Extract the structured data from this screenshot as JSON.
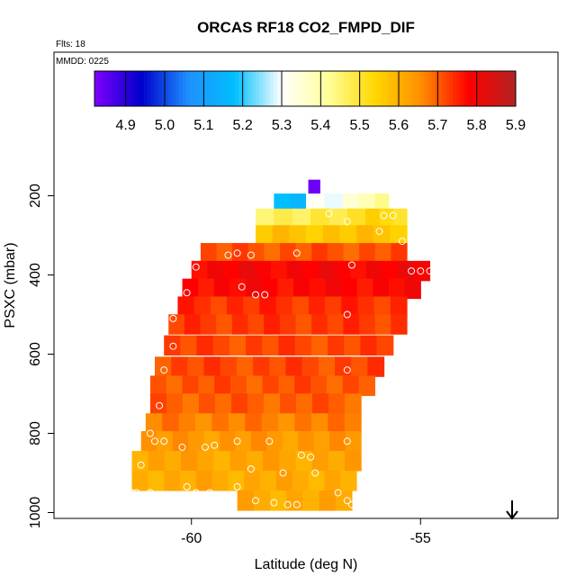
{
  "chart_data": {
    "type": "heatmap",
    "title": "ORCAS RF18 CO2_FMPD_DIF",
    "flights_label": "Flts: 18",
    "date_label": "MMDD: 0225",
    "xlabel": "Latitude (deg N)",
    "ylabel": "PSXC (mbar)",
    "xlim": [
      -63,
      -52
    ],
    "ylim": [
      1010,
      100
    ],
    "xticks": [
      -60,
      -55
    ],
    "yticks": [
      200,
      400,
      600,
      800,
      1000
    ],
    "colorbar": {
      "min": 4.82,
      "max": 5.9,
      "ticks": [
        4.9,
        5.0,
        5.1,
        5.2,
        5.3,
        5.4,
        5.5,
        5.6,
        5.7,
        5.8,
        5.9
      ],
      "colors": [
        "#8000ff",
        "#0000cc",
        "#1e90ff",
        "#00bfff",
        "#ffffff",
        "#ffff99",
        "#ffd700",
        "#ff8c00",
        "#ff0000",
        "#b22222"
      ]
    },
    "cells": [
      {
        "p": 185,
        "lat_min": -57.45,
        "lat_max": -57.2,
        "v": 4.86
      },
      {
        "p": 220,
        "lat_min": -58.2,
        "lat_max": -57.5,
        "v": 5.18
      },
      {
        "p": 220,
        "lat_min": -57.5,
        "lat_max": -56.7,
        "v": 5.29
      },
      {
        "p": 220,
        "lat_min": -56.7,
        "lat_max": -56.0,
        "v": 5.36
      },
      {
        "p": 220,
        "lat_min": -56.0,
        "lat_max": -55.7,
        "v": 5.42
      },
      {
        "p": 258,
        "lat_min": -58.6,
        "lat_max": -57.4,
        "v": 5.47
      },
      {
        "p": 258,
        "lat_min": -57.4,
        "lat_max": -56.2,
        "v": 5.5
      },
      {
        "p": 258,
        "lat_min": -56.2,
        "lat_max": -55.3,
        "v": 5.53
      },
      {
        "p": 300,
        "lat_min": -58.6,
        "lat_max": -55.3,
        "v": 5.57
      },
      {
        "p": 345,
        "lat_min": -59.8,
        "lat_max": -55.3,
        "v": 5.71
      },
      {
        "p": 390,
        "lat_min": -60.0,
        "lat_max": -54.8,
        "v": 5.79
      },
      {
        "p": 435,
        "lat_min": -60.2,
        "lat_max": -55.0,
        "v": 5.78
      },
      {
        "p": 480,
        "lat_min": -60.3,
        "lat_max": -55.3,
        "v": 5.74
      },
      {
        "p": 525,
        "lat_min": -60.5,
        "lat_max": -55.3,
        "v": 5.73
      },
      {
        "p": 578,
        "lat_min": -60.6,
        "lat_max": -55.6,
        "v": 5.72
      },
      {
        "p": 632,
        "lat_min": -60.8,
        "lat_max": -55.8,
        "v": 5.72
      },
      {
        "p": 680,
        "lat_min": -60.9,
        "lat_max": -56.0,
        "v": 5.71
      },
      {
        "p": 725,
        "lat_min": -60.9,
        "lat_max": -56.3,
        "v": 5.7
      },
      {
        "p": 775,
        "lat_min": -61.0,
        "lat_max": -56.3,
        "v": 5.67
      },
      {
        "p": 820,
        "lat_min": -61.1,
        "lat_max": -56.3,
        "v": 5.64
      },
      {
        "p": 870,
        "lat_min": -61.3,
        "lat_max": -56.3,
        "v": 5.62
      },
      {
        "p": 920,
        "lat_min": -61.3,
        "lat_max": -56.4,
        "v": 5.61
      },
      {
        "p": 970,
        "lat_min": -59.0,
        "lat_max": -56.5,
        "v": 5.61
      }
    ],
    "points": [
      {
        "lat": -57.4,
        "p": 205
      },
      {
        "lat": -57.0,
        "p": 245
      },
      {
        "lat": -56.6,
        "p": 265
      },
      {
        "lat": -55.9,
        "p": 290
      },
      {
        "lat": -55.8,
        "p": 250
      },
      {
        "lat": -55.6,
        "p": 250
      },
      {
        "lat": -55.4,
        "p": 315
      },
      {
        "lat": -56.5,
        "p": 375
      },
      {
        "lat": -55.2,
        "p": 390
      },
      {
        "lat": -55.0,
        "p": 390
      },
      {
        "lat": -54.8,
        "p": 390
      },
      {
        "lat": -56.6,
        "p": 500
      },
      {
        "lat": -57.7,
        "p": 345
      },
      {
        "lat": -58.7,
        "p": 350
      },
      {
        "lat": -59.0,
        "p": 345
      },
      {
        "lat": -59.2,
        "p": 350
      },
      {
        "lat": -59.9,
        "p": 380
      },
      {
        "lat": -60.1,
        "p": 445
      },
      {
        "lat": -58.9,
        "p": 430
      },
      {
        "lat": -58.6,
        "p": 450
      },
      {
        "lat": -58.4,
        "p": 450
      },
      {
        "lat": -60.4,
        "p": 510
      },
      {
        "lat": -60.4,
        "p": 580
      },
      {
        "lat": -60.6,
        "p": 640
      },
      {
        "lat": -56.6,
        "p": 640
      },
      {
        "lat": -60.7,
        "p": 730
      },
      {
        "lat": -60.9,
        "p": 800
      },
      {
        "lat": -60.8,
        "p": 820
      },
      {
        "lat": -60.6,
        "p": 820
      },
      {
        "lat": -60.2,
        "p": 835
      },
      {
        "lat": -59.7,
        "p": 835
      },
      {
        "lat": -59.5,
        "p": 830
      },
      {
        "lat": -59.0,
        "p": 820
      },
      {
        "lat": -58.3,
        "p": 820
      },
      {
        "lat": -57.6,
        "p": 855
      },
      {
        "lat": -57.4,
        "p": 860
      },
      {
        "lat": -56.6,
        "p": 820
      },
      {
        "lat": -61.1,
        "p": 880
      },
      {
        "lat": -58.7,
        "p": 890
      },
      {
        "lat": -58.0,
        "p": 900
      },
      {
        "lat": -57.3,
        "p": 900
      },
      {
        "lat": -61.3,
        "p": 950
      },
      {
        "lat": -61.2,
        "p": 950
      },
      {
        "lat": -60.9,
        "p": 950
      },
      {
        "lat": -60.1,
        "p": 935
      },
      {
        "lat": -59.9,
        "p": 950
      },
      {
        "lat": -59.6,
        "p": 950
      },
      {
        "lat": -59.0,
        "p": 935
      },
      {
        "lat": -58.6,
        "p": 970
      },
      {
        "lat": -58.2,
        "p": 975
      },
      {
        "lat": -57.9,
        "p": 980
      },
      {
        "lat": -57.7,
        "p": 980
      },
      {
        "lat": -56.8,
        "p": 950
      },
      {
        "lat": -56.6,
        "p": 970
      },
      {
        "lat": -56.5,
        "p": 980
      }
    ]
  }
}
